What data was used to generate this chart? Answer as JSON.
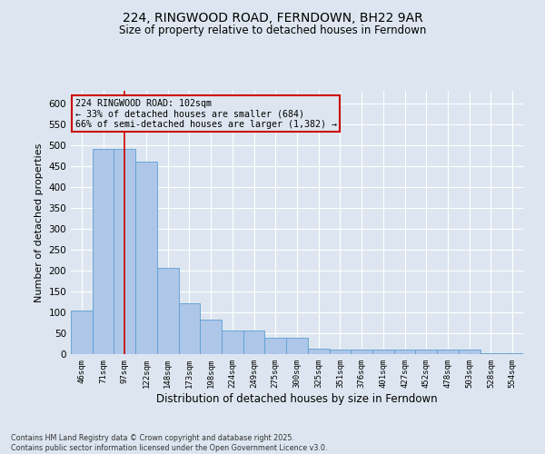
{
  "title": "224, RINGWOOD ROAD, FERNDOWN, BH22 9AR",
  "subtitle": "Size of property relative to detached houses in Ferndown",
  "xlabel": "Distribution of detached houses by size in Ferndown",
  "ylabel": "Number of detached properties",
  "footer_line1": "Contains HM Land Registry data © Crown copyright and database right 2025.",
  "footer_line2": "Contains public sector information licensed under the Open Government Licence v3.0.",
  "categories": [
    "46sqm",
    "71sqm",
    "97sqm",
    "122sqm",
    "148sqm",
    "173sqm",
    "198sqm",
    "224sqm",
    "249sqm",
    "275sqm",
    "300sqm",
    "325sqm",
    "351sqm",
    "376sqm",
    "401sqm",
    "427sqm",
    "452sqm",
    "478sqm",
    "503sqm",
    "528sqm",
    "554sqm"
  ],
  "values": [
    105,
    490,
    490,
    460,
    207,
    122,
    82,
    57,
    57,
    39,
    39,
    14,
    10,
    10,
    10,
    10,
    10,
    10,
    11,
    3,
    3
  ],
  "bar_color": "#aec6e8",
  "bar_edge_color": "#5a9fd4",
  "background_color": "#dde6f0",
  "grid_color": "#ffffff",
  "annotation_text_line1": "224 RINGWOOD ROAD: 102sqm",
  "annotation_text_line2": "← 33% of detached houses are smaller (684)",
  "annotation_text_line3": "66% of semi-detached houses are larger (1,382) →",
  "annotation_box_color": "#cc0000",
  "vline_x": 2,
  "vline_color": "#cc0000",
  "ylim": [
    0,
    630
  ],
  "yticks": [
    0,
    50,
    100,
    150,
    200,
    250,
    300,
    350,
    400,
    450,
    500,
    550,
    600
  ]
}
